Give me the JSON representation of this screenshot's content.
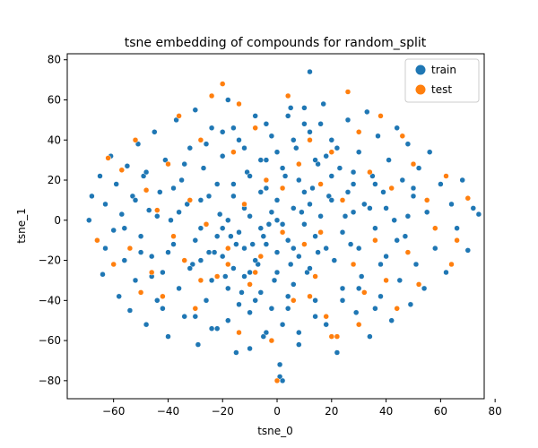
{
  "chart_data": {
    "type": "scatter",
    "title": "tsne embedding of compounds for random_split",
    "xlabel": "tsne_0",
    "ylabel": "tsne_1",
    "xlim": [
      -77,
      76
    ],
    "ylim": [
      -89,
      83
    ],
    "xticks": [
      -60,
      -40,
      -20,
      0,
      20,
      40,
      60,
      80
    ],
    "yticks": [
      -80,
      -60,
      -40,
      -20,
      0,
      20,
      40,
      60,
      80
    ],
    "grid": false,
    "legend_position": "top-right",
    "series": [
      {
        "name": "train",
        "color": "#1f77b4",
        "points": [
          [
            -69,
            0
          ],
          [
            -68,
            12
          ],
          [
            -66,
            -10
          ],
          [
            -65,
            22
          ],
          [
            -64,
            -27
          ],
          [
            -63,
            8
          ],
          [
            -63,
            -14
          ],
          [
            -61,
            32
          ],
          [
            -60,
            -5
          ],
          [
            -59,
            18
          ],
          [
            -58,
            -38
          ],
          [
            -57,
            3
          ],
          [
            -56,
            -20
          ],
          [
            -55,
            27
          ],
          [
            -54,
            -45
          ],
          [
            -53,
            12
          ],
          [
            -52,
            -30
          ],
          [
            -51,
            38
          ],
          [
            -50,
            -8
          ],
          [
            -49,
            22
          ],
          [
            -48,
            -52
          ],
          [
            -47,
            5
          ],
          [
            -46,
            -18
          ],
          [
            -45,
            44
          ],
          [
            -44,
            -40
          ],
          [
            -43,
            14
          ],
          [
            -42,
            -26
          ],
          [
            -41,
            30
          ],
          [
            -40,
            -58
          ],
          [
            -39,
            0
          ],
          [
            -38,
            -12
          ],
          [
            -37,
            50
          ],
          [
            -36,
            -34
          ],
          [
            -35,
            20
          ],
          [
            -34,
            -48
          ],
          [
            -33,
            8
          ],
          [
            -32,
            36
          ],
          [
            -31,
            -22
          ],
          [
            -30,
            55
          ],
          [
            -29,
            -62
          ],
          [
            -28,
            -4
          ],
          [
            -27,
            26
          ],
          [
            -26,
            -40
          ],
          [
            -25,
            12
          ],
          [
            -24,
            46
          ],
          [
            -23,
            -16
          ],
          [
            -22,
            -54
          ],
          [
            -21,
            3
          ],
          [
            -20,
            32
          ],
          [
            -19,
            -28
          ],
          [
            -18,
            60
          ],
          [
            -17,
            -8
          ],
          [
            -16,
            18
          ],
          [
            -15,
            -66
          ],
          [
            -14,
            40
          ],
          [
            -13,
            -36
          ],
          [
            -12,
            6
          ],
          [
            -11,
            24
          ],
          [
            -10,
            -46
          ],
          [
            -9,
            -12
          ],
          [
            -8,
            52
          ],
          [
            -7,
            -22
          ],
          [
            -6,
            14
          ],
          [
            -5,
            -58
          ],
          [
            -4,
            30
          ],
          [
            -3,
            -2
          ],
          [
            -2,
            42
          ],
          [
            -1,
            -30
          ],
          [
            0,
            10
          ],
          [
            1,
            -78
          ],
          [
            1,
            -72
          ],
          [
            2,
            -80
          ],
          [
            3,
            22
          ],
          [
            4,
            -44
          ],
          [
            5,
            56
          ],
          [
            6,
            -14
          ],
          [
            7,
            36
          ],
          [
            8,
            -62
          ],
          [
            9,
            4
          ],
          [
            10,
            48
          ],
          [
            11,
            -26
          ],
          [
            12,
            74
          ],
          [
            13,
            16
          ],
          [
            14,
            -40
          ],
          [
            15,
            28
          ],
          [
            16,
            -6
          ],
          [
            17,
            58
          ],
          [
            18,
            -52
          ],
          [
            19,
            12
          ],
          [
            20,
            40
          ],
          [
            21,
            -20
          ],
          [
            22,
            -66
          ],
          [
            23,
            26
          ],
          [
            24,
            -34
          ],
          [
            25,
            2
          ],
          [
            26,
            50
          ],
          [
            27,
            -12
          ],
          [
            28,
            18
          ],
          [
            29,
            -46
          ],
          [
            30,
            34
          ],
          [
            31,
            -28
          ],
          [
            32,
            8
          ],
          [
            33,
            54
          ],
          [
            34,
            -58
          ],
          [
            35,
            22
          ],
          [
            36,
            -4
          ],
          [
            37,
            42
          ],
          [
            38,
            -38
          ],
          [
            39,
            14
          ],
          [
            40,
            -18
          ],
          [
            41,
            30
          ],
          [
            42,
            -50
          ],
          [
            43,
            0
          ],
          [
            44,
            46
          ],
          [
            45,
            -30
          ],
          [
            46,
            20
          ],
          [
            47,
            -8
          ],
          [
            48,
            38
          ],
          [
            49,
            -42
          ],
          [
            50,
            12
          ],
          [
            51,
            -22
          ],
          [
            52,
            26
          ],
          [
            54,
            -34
          ],
          [
            55,
            4
          ],
          [
            56,
            34
          ],
          [
            58,
            -14
          ],
          [
            60,
            18
          ],
          [
            62,
            -26
          ],
          [
            64,
            8
          ],
          [
            66,
            -4
          ],
          [
            68,
            20
          ],
          [
            70,
            -15
          ],
          [
            72,
            6
          ],
          [
            74,
            3
          ],
          [
            -30,
            -10
          ],
          [
            -28,
            -20
          ],
          [
            -26,
            -2
          ],
          [
            -24,
            -30
          ],
          [
            -22,
            -8
          ],
          [
            -20,
            -18
          ],
          [
            -18,
            0
          ],
          [
            -16,
            -24
          ],
          [
            -14,
            -6
          ],
          [
            -12,
            -14
          ],
          [
            -10,
            2
          ],
          [
            -8,
            -20
          ],
          [
            -6,
            -4
          ],
          [
            -4,
            -12
          ],
          [
            -2,
            4
          ],
          [
            0,
            -16
          ],
          [
            2,
            -2
          ],
          [
            4,
            -10
          ],
          [
            6,
            6
          ],
          [
            8,
            -18
          ],
          [
            10,
            -2
          ],
          [
            12,
            8
          ],
          [
            14,
            -8
          ],
          [
            16,
            2
          ],
          [
            18,
            -14
          ],
          [
            20,
            10
          ],
          [
            -25,
            -16
          ],
          [
            -20,
            -4
          ],
          [
            -15,
            -12
          ],
          [
            -10,
            -26
          ],
          [
            -5,
            -8
          ],
          [
            0,
            0
          ],
          [
            5,
            -22
          ],
          [
            10,
            14
          ],
          [
            15,
            -16
          ],
          [
            -18,
            -34
          ],
          [
            -12,
            -28
          ],
          [
            -6,
            -36
          ],
          [
            0,
            -26
          ],
          [
            6,
            -32
          ],
          [
            12,
            -24
          ],
          [
            -22,
            18
          ],
          [
            -16,
            12
          ],
          [
            -10,
            22
          ],
          [
            -4,
            16
          ],
          [
            2,
            26
          ],
          [
            8,
            20
          ],
          [
            14,
            30
          ],
          [
            20,
            22
          ],
          [
            26,
            14
          ],
          [
            -8,
            -40
          ],
          [
            -2,
            -44
          ],
          [
            4,
            -38
          ],
          [
            -14,
            -42
          ],
          [
            -28,
            10
          ],
          [
            -32,
            -24
          ],
          [
            -36,
            4
          ],
          [
            24,
            -6
          ],
          [
            28,
            4
          ],
          [
            30,
            -14
          ],
          [
            -40,
            -16
          ],
          [
            -44,
            2
          ],
          [
            34,
            6
          ],
          [
            38,
            -22
          ],
          [
            -12,
            36
          ],
          [
            -6,
            30
          ],
          [
            0,
            34
          ],
          [
            6,
            40
          ],
          [
            12,
            44
          ],
          [
            18,
            32
          ],
          [
            -20,
            44
          ],
          [
            -26,
            38
          ],
          [
            -34,
            28
          ],
          [
            -38,
            16
          ],
          [
            22,
            36
          ],
          [
            28,
            24
          ],
          [
            36,
            18
          ],
          [
            40,
            6
          ],
          [
            -46,
            -28
          ],
          [
            -50,
            -16
          ],
          [
            -42,
            -44
          ],
          [
            -30,
            -48
          ],
          [
            -24,
            -54
          ],
          [
            -18,
            -50
          ],
          [
            24,
            -40
          ],
          [
            30,
            -34
          ],
          [
            36,
            -44
          ],
          [
            -52,
            10
          ],
          [
            -56,
            -4
          ],
          [
            -48,
            24
          ],
          [
            44,
            -10
          ],
          [
            48,
            2
          ],
          [
            50,
            16
          ],
          [
            2,
            -52
          ],
          [
            -4,
            -56
          ],
          [
            8,
            -56
          ],
          [
            14,
            -48
          ],
          [
            -10,
            -64
          ],
          [
            -16,
            46
          ],
          [
            -4,
            48
          ],
          [
            4,
            52
          ],
          [
            10,
            56
          ],
          [
            16,
            48
          ]
        ]
      },
      {
        "name": "test",
        "color": "#ff7f0e",
        "points": [
          [
            -66,
            -10
          ],
          [
            -62,
            31
          ],
          [
            -60,
            -22
          ],
          [
            -57,
            25
          ],
          [
            -54,
            -14
          ],
          [
            -52,
            40
          ],
          [
            -50,
            -36
          ],
          [
            -48,
            15
          ],
          [
            -46,
            -26
          ],
          [
            -44,
            5
          ],
          [
            -42,
            -38
          ],
          [
            -40,
            28
          ],
          [
            -38,
            -8
          ],
          [
            -36,
            52
          ],
          [
            -34,
            -20
          ],
          [
            -32,
            10
          ],
          [
            -30,
            -44
          ],
          [
            -28,
            40
          ],
          [
            -26,
            -2
          ],
          [
            -24,
            62
          ],
          [
            -22,
            -28
          ],
          [
            -20,
            68
          ],
          [
            -18,
            -14
          ],
          [
            -16,
            34
          ],
          [
            -14,
            -56
          ],
          [
            -12,
            8
          ],
          [
            -10,
            -32
          ],
          [
            -8,
            46
          ],
          [
            -6,
            -18
          ],
          [
            -4,
            20
          ],
          [
            -2,
            -60
          ],
          [
            0,
            -80
          ],
          [
            2,
            -6
          ],
          [
            4,
            62
          ],
          [
            6,
            -40
          ],
          [
            8,
            28
          ],
          [
            10,
            -12
          ],
          [
            12,
            40
          ],
          [
            14,
            -28
          ],
          [
            16,
            18
          ],
          [
            18,
            -48
          ],
          [
            20,
            34
          ],
          [
            22,
            -58
          ],
          [
            24,
            10
          ],
          [
            26,
            64
          ],
          [
            28,
            -22
          ],
          [
            30,
            44
          ],
          [
            32,
            -36
          ],
          [
            34,
            24
          ],
          [
            36,
            -10
          ],
          [
            38,
            52
          ],
          [
            40,
            -30
          ],
          [
            42,
            16
          ],
          [
            44,
            -44
          ],
          [
            46,
            42
          ],
          [
            48,
            -16
          ],
          [
            50,
            28
          ],
          [
            52,
            -32
          ],
          [
            55,
            10
          ],
          [
            58,
            -4
          ],
          [
            62,
            22
          ],
          [
            64,
            -22
          ],
          [
            66,
            -10
          ],
          [
            70,
            11
          ],
          [
            -8,
            -26
          ],
          [
            2,
            16
          ],
          [
            16,
            -6
          ],
          [
            -18,
            -22
          ],
          [
            12,
            -38
          ],
          [
            -28,
            -30
          ],
          [
            30,
            -52
          ],
          [
            -14,
            58
          ],
          [
            20,
            -58
          ]
        ]
      }
    ]
  }
}
